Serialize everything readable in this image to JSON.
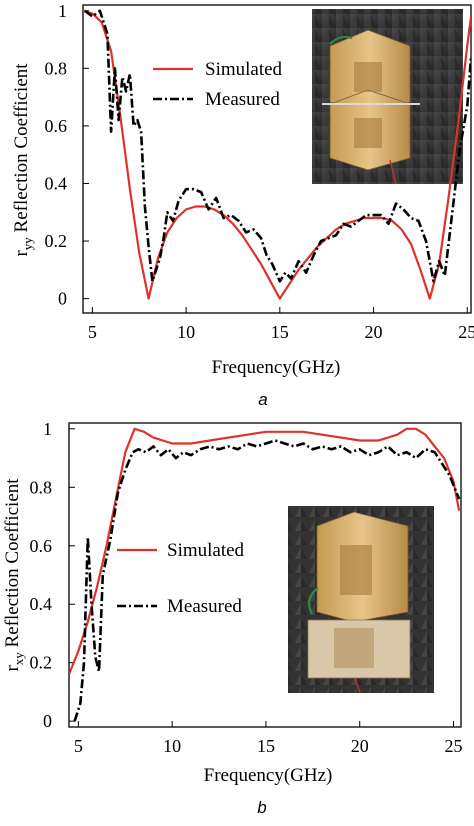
{
  "colors": {
    "simulated": "#e0322a",
    "measured": "#000000"
  },
  "chart_data": [
    {
      "type": "line",
      "panel_label": "a",
      "xlabel": "Frequency(GHz)",
      "ylabel_main": "r",
      "ylabel_sub": "yy",
      "ylabel_rest": " Reflection Coefficient",
      "xlim": [
        4.5,
        25.2
      ],
      "ylim": [
        -0.05,
        1.02
      ],
      "xticks": [
        5,
        10,
        15,
        20,
        25
      ],
      "xtick_labels": [
        "5",
        "10",
        "15",
        "20",
        "25"
      ],
      "yticks": [
        0,
        0.2,
        0.4,
        0.6,
        0.8,
        1
      ],
      "ytick_labels": [
        "0",
        "0.2",
        "0.4",
        "0.6",
        "0.8",
        "1"
      ],
      "legend_position": "upper-center",
      "inset_photo": "top-right",
      "series": [
        {
          "name": "Simulated",
          "style": "solid",
          "x": [
            4.5,
            5.0,
            5.5,
            6.0,
            6.5,
            7.0,
            7.5,
            8.0,
            8.5,
            9.0,
            9.5,
            10.0,
            10.5,
            11.0,
            11.5,
            12.0,
            12.5,
            13.0,
            13.5,
            14.0,
            14.5,
            15.0,
            15.5,
            16.0,
            16.5,
            17.0,
            17.5,
            18.0,
            18.5,
            19.0,
            19.5,
            20.0,
            20.5,
            21.0,
            21.5,
            22.0,
            22.5,
            23.0,
            23.5,
            24.0,
            24.5,
            25.0,
            25.2
          ],
          "y": [
            1.0,
            0.99,
            0.96,
            0.86,
            0.63,
            0.38,
            0.16,
            0.0,
            0.14,
            0.23,
            0.28,
            0.31,
            0.32,
            0.32,
            0.31,
            0.29,
            0.26,
            0.22,
            0.17,
            0.12,
            0.06,
            0.0,
            0.05,
            0.1,
            0.14,
            0.18,
            0.21,
            0.24,
            0.26,
            0.27,
            0.28,
            0.28,
            0.28,
            0.27,
            0.24,
            0.19,
            0.1,
            0.0,
            0.12,
            0.35,
            0.6,
            0.88,
            0.98
          ]
        },
        {
          "name": "Measured",
          "style": "dashdot",
          "x": [
            4.6,
            5.0,
            5.4,
            5.8,
            6.0,
            6.2,
            6.4,
            6.6,
            6.8,
            7.0,
            7.2,
            7.4,
            7.6,
            7.8,
            8.0,
            8.2,
            8.4,
            8.6,
            8.8,
            9.0,
            9.3,
            9.6,
            10.0,
            10.4,
            10.8,
            11.2,
            11.6,
            12.0,
            12.4,
            12.8,
            13.2,
            13.6,
            14.0,
            14.3,
            14.6,
            15.0,
            15.3,
            15.6,
            16.0,
            16.4,
            16.8,
            17.2,
            17.6,
            18.0,
            18.4,
            18.8,
            19.2,
            19.6,
            20.0,
            20.4,
            20.8,
            21.2,
            21.6,
            22.0,
            22.4,
            22.8,
            23.2,
            23.5,
            23.8,
            24.2,
            24.6,
            25.0,
            25.2
          ],
          "y": [
            1.0,
            0.98,
            1.0,
            0.92,
            0.58,
            0.8,
            0.62,
            0.77,
            0.72,
            0.78,
            0.6,
            0.62,
            0.58,
            0.32,
            0.18,
            0.06,
            0.1,
            0.14,
            0.21,
            0.3,
            0.27,
            0.34,
            0.38,
            0.38,
            0.37,
            0.31,
            0.35,
            0.28,
            0.29,
            0.27,
            0.23,
            0.24,
            0.21,
            0.15,
            0.12,
            0.06,
            0.09,
            0.07,
            0.13,
            0.09,
            0.15,
            0.2,
            0.21,
            0.22,
            0.26,
            0.25,
            0.27,
            0.29,
            0.29,
            0.29,
            0.26,
            0.33,
            0.31,
            0.28,
            0.27,
            0.2,
            0.06,
            0.13,
            0.08,
            0.3,
            0.52,
            0.67,
            0.84
          ]
        }
      ]
    },
    {
      "type": "line",
      "panel_label": "b",
      "xlabel": "Frequency(GHz)",
      "ylabel_main": "r",
      "ylabel_sub": "xy",
      "ylabel_rest": " Reflection Coefficient",
      "xlim": [
        4.5,
        25.4
      ],
      "ylim": [
        -0.02,
        1.02
      ],
      "xticks": [
        5,
        10,
        15,
        20,
        25
      ],
      "xtick_labels": [
        "5",
        "10",
        "15",
        "20",
        "25"
      ],
      "yticks": [
        0,
        0.2,
        0.4,
        0.6,
        0.8,
        1
      ],
      "ytick_labels": [
        "0",
        "0.2",
        "0.4",
        "0.6",
        "0.8",
        "1"
      ],
      "legend_position": "center-left",
      "inset_photo": "center-right",
      "series": [
        {
          "name": "Simulated",
          "style": "solid",
          "x": [
            4.5,
            5.0,
            5.5,
            6.0,
            6.5,
            7.0,
            7.5,
            8.0,
            8.5,
            9.0,
            10.0,
            11.0,
            12.0,
            13.0,
            14.0,
            15.0,
            16.0,
            17.0,
            18.0,
            19.0,
            20.0,
            21.0,
            22.0,
            22.5,
            23.0,
            23.5,
            24.0,
            24.5,
            25.0,
            25.3
          ],
          "y": [
            0.16,
            0.24,
            0.34,
            0.46,
            0.6,
            0.76,
            0.92,
            1.0,
            0.99,
            0.97,
            0.95,
            0.95,
            0.96,
            0.97,
            0.98,
            0.99,
            0.99,
            0.99,
            0.98,
            0.97,
            0.96,
            0.96,
            0.98,
            1.0,
            1.0,
            0.98,
            0.94,
            0.9,
            0.82,
            0.72
          ]
        },
        {
          "name": "Measured",
          "style": "dashdot",
          "x": [
            4.8,
            5.1,
            5.3,
            5.5,
            5.7,
            5.9,
            6.1,
            6.3,
            6.5,
            6.7,
            6.9,
            7.1,
            7.3,
            7.5,
            7.7,
            7.9,
            8.2,
            8.6,
            9.0,
            9.4,
            9.8,
            10.2,
            10.6,
            11.0,
            11.5,
            12.0,
            12.5,
            13.0,
            13.5,
            14.0,
            14.5,
            15.0,
            15.5,
            16.0,
            16.5,
            17.0,
            17.5,
            18.0,
            18.5,
            19.0,
            19.5,
            20.0,
            20.5,
            21.0,
            21.5,
            22.0,
            22.5,
            23.0,
            23.5,
            24.0,
            24.4,
            24.8,
            25.3
          ],
          "y": [
            0.0,
            0.06,
            0.2,
            0.63,
            0.4,
            0.22,
            0.17,
            0.5,
            0.56,
            0.62,
            0.7,
            0.78,
            0.82,
            0.86,
            0.89,
            0.92,
            0.93,
            0.92,
            0.94,
            0.91,
            0.93,
            0.9,
            0.92,
            0.91,
            0.93,
            0.94,
            0.93,
            0.94,
            0.93,
            0.95,
            0.94,
            0.95,
            0.96,
            0.95,
            0.94,
            0.95,
            0.93,
            0.94,
            0.93,
            0.94,
            0.92,
            0.93,
            0.91,
            0.92,
            0.94,
            0.91,
            0.92,
            0.9,
            0.93,
            0.92,
            0.88,
            0.84,
            0.76
          ]
        }
      ]
    }
  ]
}
